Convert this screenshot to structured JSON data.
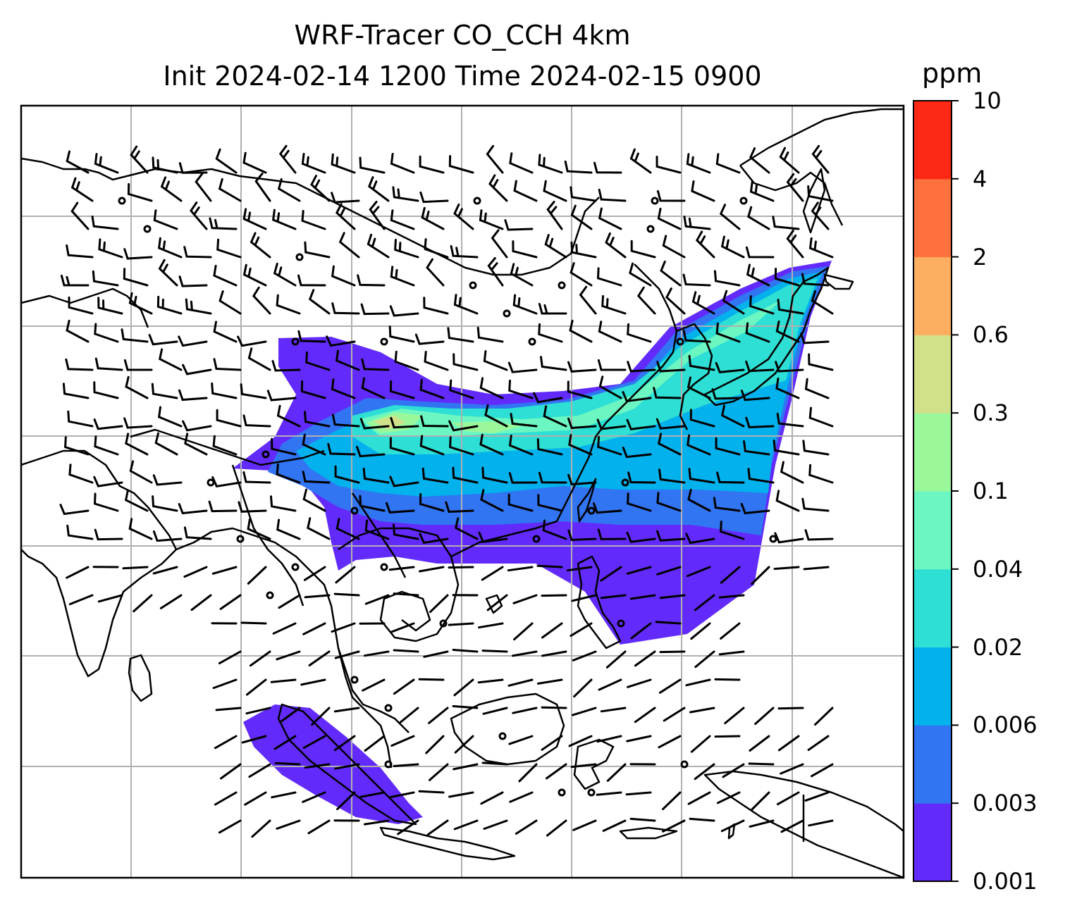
{
  "title": {
    "line1": "WRF-Tracer CO_CCH 4km",
    "line2": "Init 2024-02-14 1200 Time 2024-02-15 0900"
  },
  "colorbar": {
    "unit": "ppm",
    "tick_labels": [
      "0.001",
      "0.003",
      "0.006",
      "0.02",
      "0.04",
      "0.1",
      "0.3",
      "0.6",
      "2",
      "4",
      "10"
    ],
    "colors": [
      "#632bfb",
      "#3175f3",
      "#03b1ec",
      "#2ddfd4",
      "#6cf7c2",
      "#9af89b",
      "#d1e18a",
      "#feae60",
      "#fe713e",
      "#fe2915"
    ]
  },
  "map": {
    "gridlines": true,
    "gridline_color": "#b0b0b0",
    "coastline_color": "#000000",
    "wind_barb_color": "#000000",
    "field": "CO_CCH tracer concentration",
    "plume_color_classes": [
      0,
      1,
      2,
      3,
      4,
      5,
      6
    ]
  }
}
